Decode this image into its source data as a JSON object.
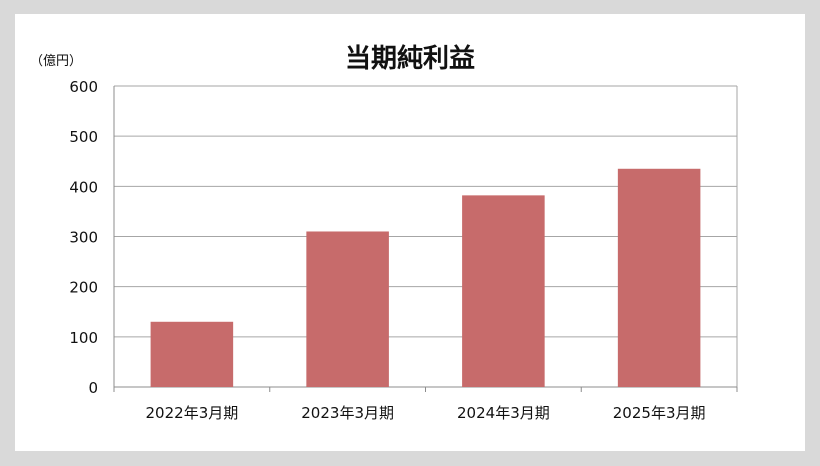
{
  "chart_data": {
    "type": "bar",
    "title": "当期純利益",
    "unit_label": "（億円）",
    "categories": [
      "2022年3月期",
      "2023年3月期",
      "2024年3月期",
      "2025年3月期"
    ],
    "values": [
      130,
      310,
      382,
      435
    ],
    "ylim": [
      0,
      600
    ],
    "yticks": [
      0,
      100,
      200,
      300,
      400,
      500,
      600
    ],
    "grid": true,
    "bar_color": "#c76b6b"
  }
}
